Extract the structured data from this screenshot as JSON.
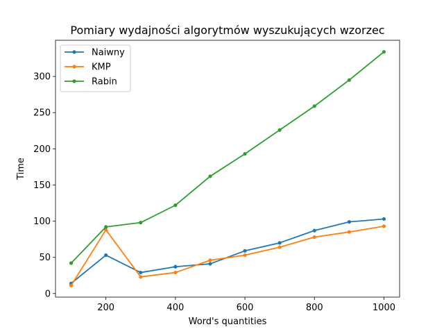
{
  "chart_data": {
    "type": "line",
    "title": "Pomiary wydajności algorytmów wyszukujących wzorzec",
    "xlabel": "Word's quantities",
    "ylabel": "Time",
    "x": [
      100,
      200,
      300,
      400,
      500,
      600,
      700,
      800,
      900,
      1000
    ],
    "xlim": [
      55,
      1045
    ],
    "ylim": [
      -5,
      350
    ],
    "xticks": [
      200,
      400,
      600,
      800,
      1000
    ],
    "yticks": [
      0,
      50,
      100,
      150,
      200,
      250,
      300
    ],
    "grid": false,
    "legend_position": "upper left",
    "series": [
      {
        "name": "Naiwny",
        "color": "#1f77b4",
        "values": [
          14,
          53,
          29,
          37,
          41,
          59,
          70,
          87,
          99,
          103
        ]
      },
      {
        "name": "KMP",
        "color": "#ff7f0e",
        "values": [
          11,
          88,
          23,
          29,
          46,
          53,
          64,
          78,
          85,
          93
        ]
      },
      {
        "name": "Rabin",
        "color": "#2ca02c",
        "values": [
          42,
          92,
          98,
          122,
          162,
          193,
          226,
          259,
          295,
          334
        ]
      }
    ]
  }
}
